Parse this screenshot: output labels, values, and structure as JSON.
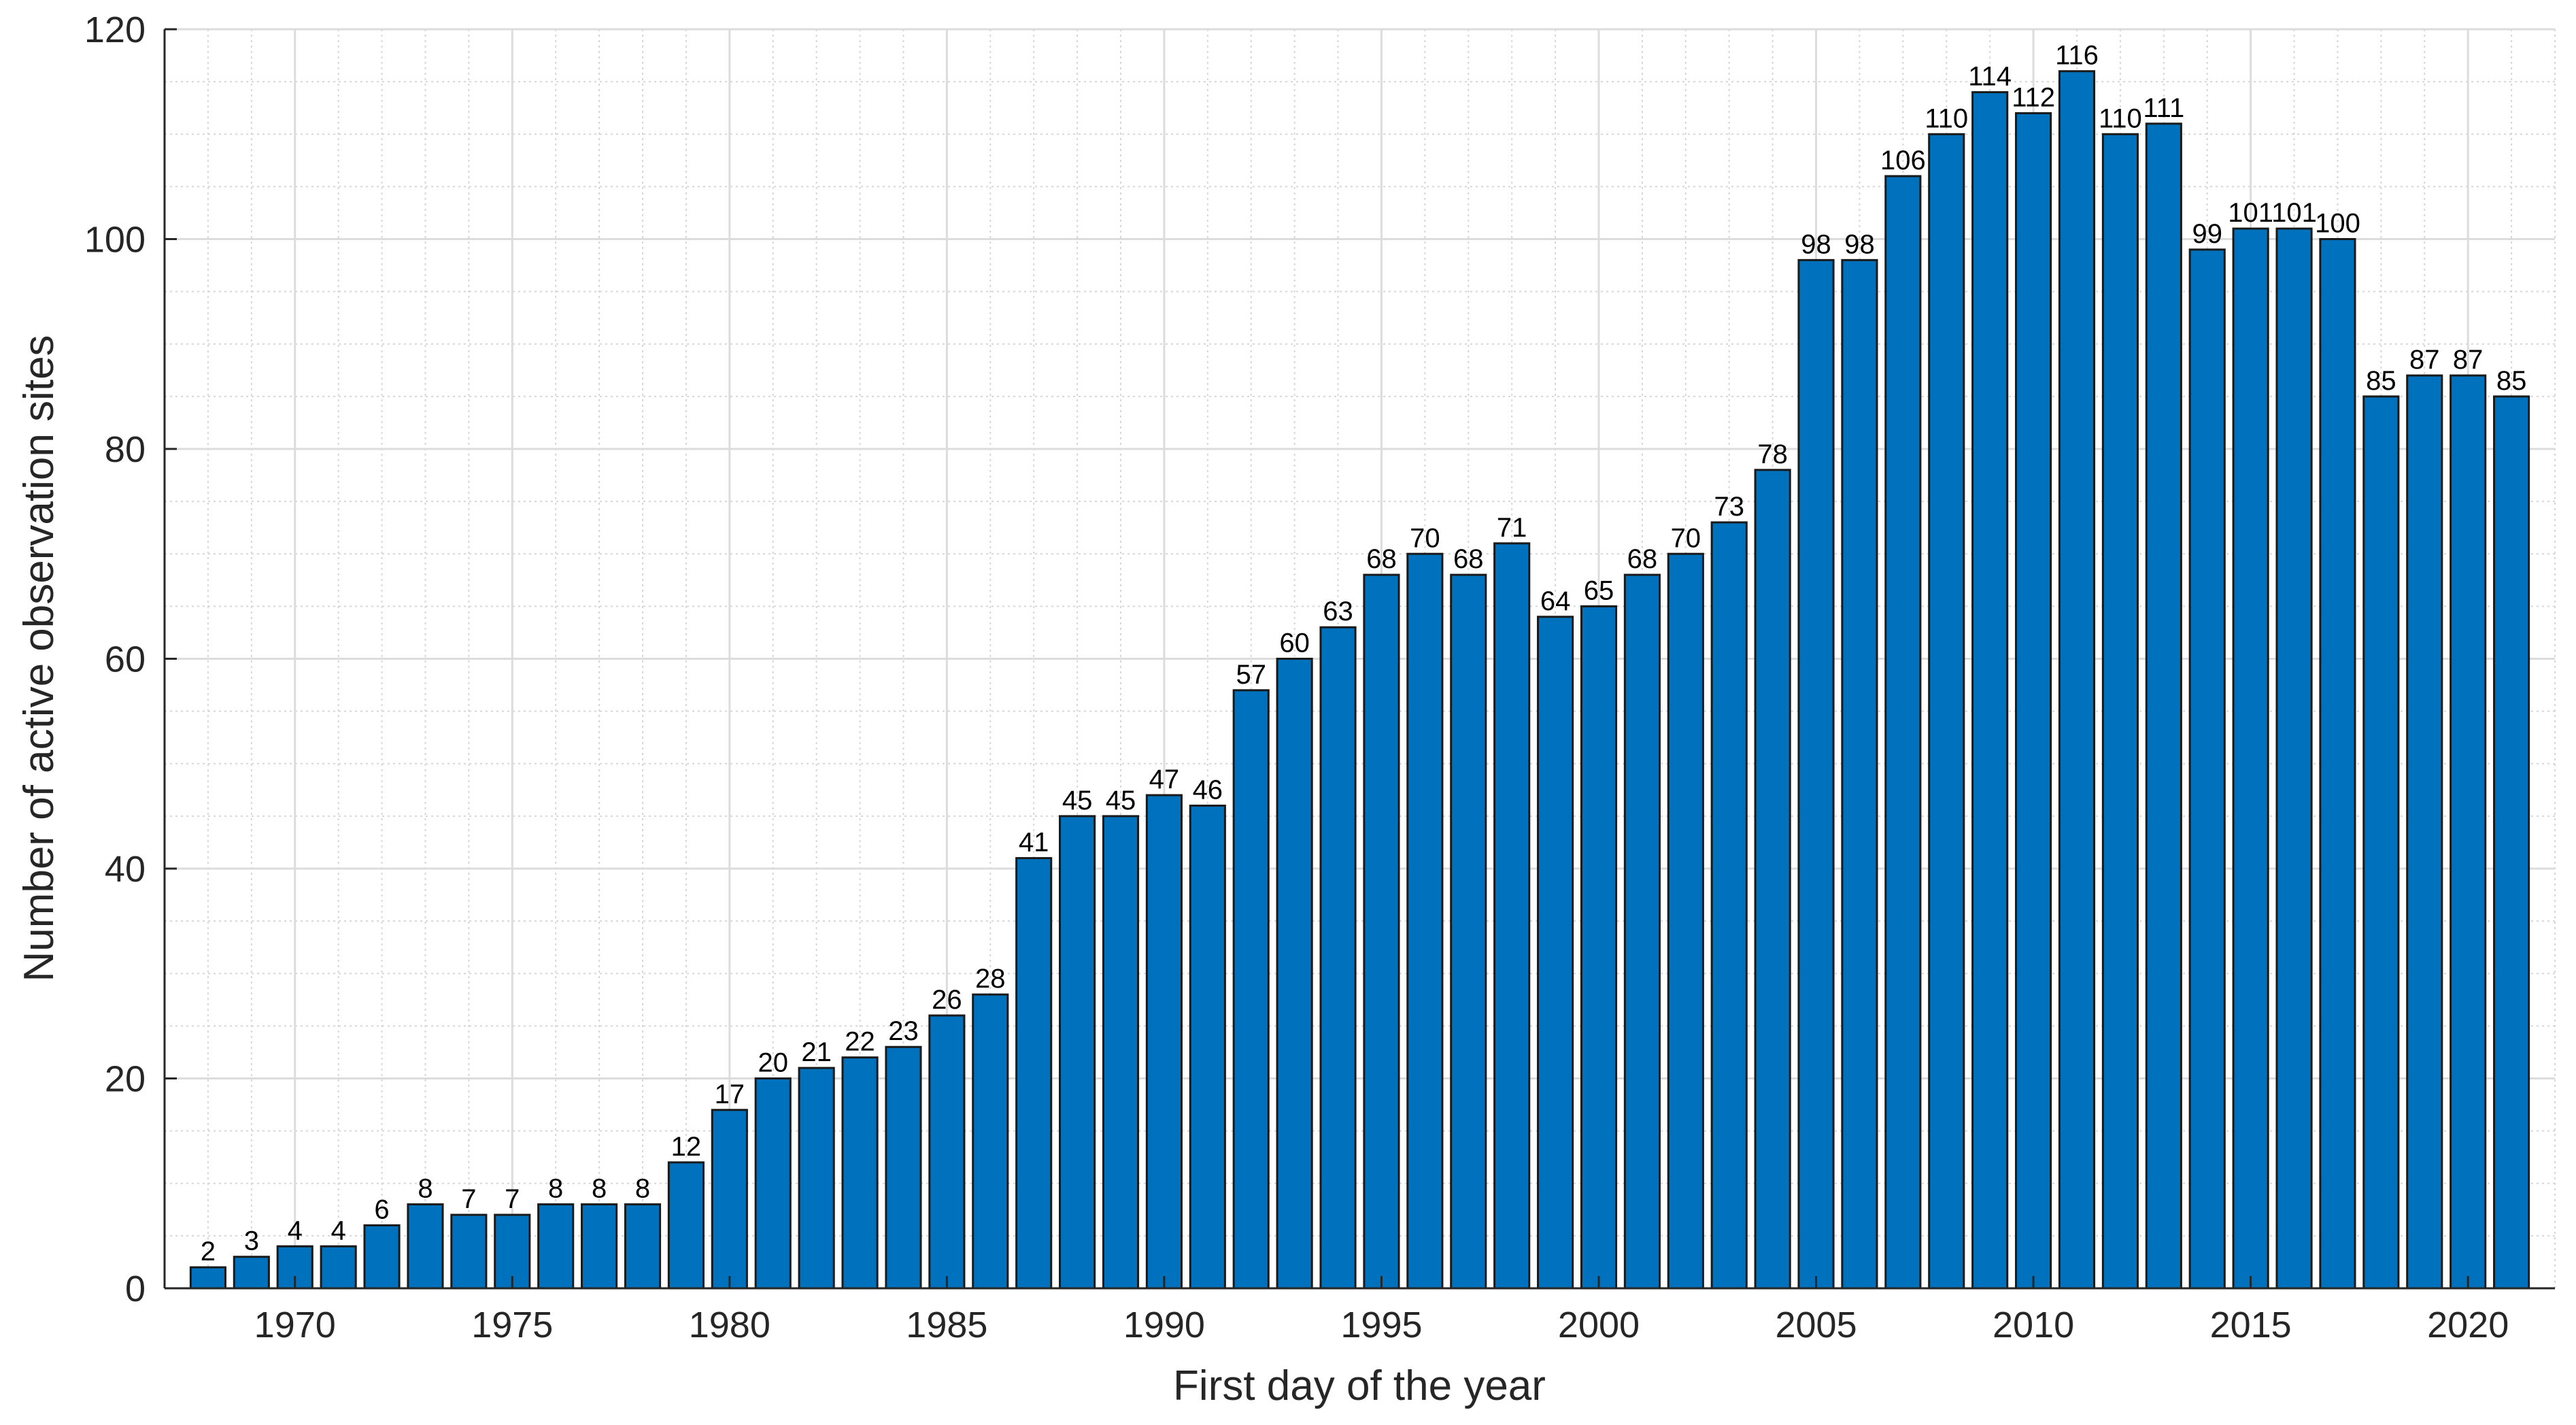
{
  "chart_data": {
    "type": "bar",
    "title": "",
    "xlabel": "First day of the year",
    "ylabel": "Number of active observation sites",
    "xlim": [
      1967,
      2022
    ],
    "ylim": [
      0,
      120
    ],
    "xticks": [
      1970,
      1975,
      1980,
      1985,
      1990,
      1995,
      2000,
      2005,
      2010,
      2015,
      2020
    ],
    "yticks": [
      0,
      20,
      40,
      60,
      80,
      100,
      120
    ],
    "grid": true,
    "minor_grid": true,
    "bar_color": "#0072BD",
    "categories": [
      1968,
      1969,
      1970,
      1971,
      1972,
      1973,
      1974,
      1975,
      1976,
      1977,
      1978,
      1979,
      1980,
      1981,
      1982,
      1983,
      1984,
      1985,
      1986,
      1987,
      1988,
      1989,
      1990,
      1991,
      1992,
      1993,
      1994,
      1995,
      1996,
      1997,
      1998,
      1999,
      2000,
      2001,
      2002,
      2003,
      2004,
      2005,
      2006,
      2007,
      2008,
      2009,
      2010,
      2011,
      2012,
      2013,
      2014,
      2015,
      2016,
      2017,
      2018,
      2019,
      2020,
      2021
    ],
    "values": [
      2,
      3,
      4,
      4,
      6,
      8,
      7,
      7,
      8,
      8,
      8,
      12,
      17,
      20,
      21,
      22,
      23,
      26,
      28,
      41,
      45,
      45,
      47,
      46,
      57,
      60,
      63,
      68,
      70,
      68,
      71,
      64,
      65,
      68,
      70,
      73,
      78,
      98,
      98,
      106,
      110,
      114,
      112,
      116,
      110,
      111,
      99,
      101,
      101,
      100,
      85,
      87,
      87,
      85
    ],
    "data_labels": true
  }
}
